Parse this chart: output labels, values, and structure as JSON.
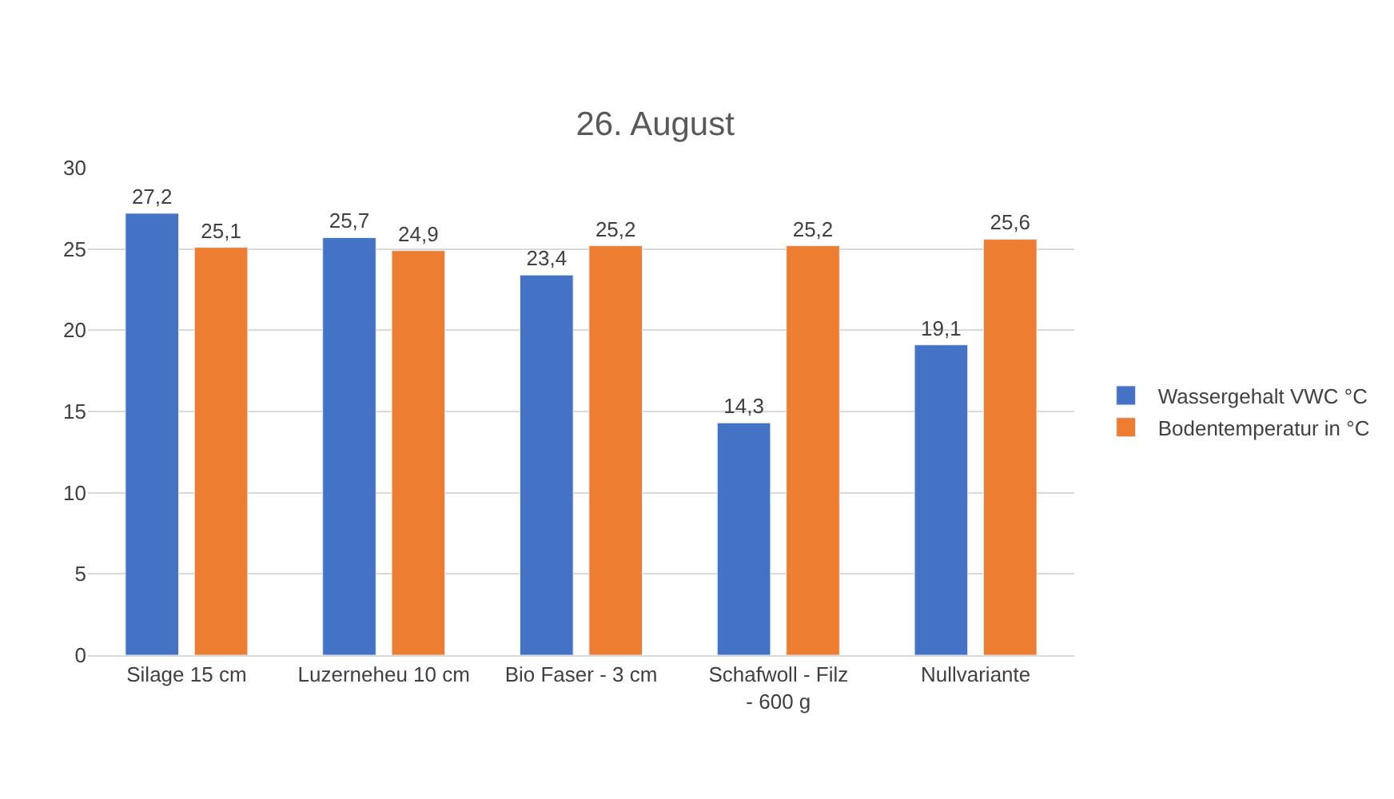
{
  "chart_data": {
    "type": "bar",
    "title": "26. August",
    "categories": [
      "Silage 15 cm",
      "Luzerneheu 10 cm",
      "Bio Faser - 3 cm",
      "Schafwoll - Filz - 600 g",
      "Nullvariante"
    ],
    "series": [
      {
        "name": "Wassergehalt VWC °C",
        "color": "#4472c4",
        "values": [
          27.2,
          25.7,
          23.4,
          14.3,
          19.1
        ],
        "value_labels": [
          "27,2",
          "25,7",
          "23,4",
          "14,3",
          "19,1"
        ]
      },
      {
        "name": "Bodentemperatur in °C",
        "color": "#ed7d31",
        "values": [
          25.1,
          24.9,
          25.2,
          25.2,
          25.6
        ],
        "value_labels": [
          "25,1",
          "24,9",
          "25,2",
          "25,2",
          "25,6"
        ]
      }
    ],
    "ylim": [
      0,
      30
    ],
    "yticks": [
      0,
      5,
      10,
      15,
      20,
      25,
      30
    ],
    "grid": "y",
    "legend": "right"
  }
}
